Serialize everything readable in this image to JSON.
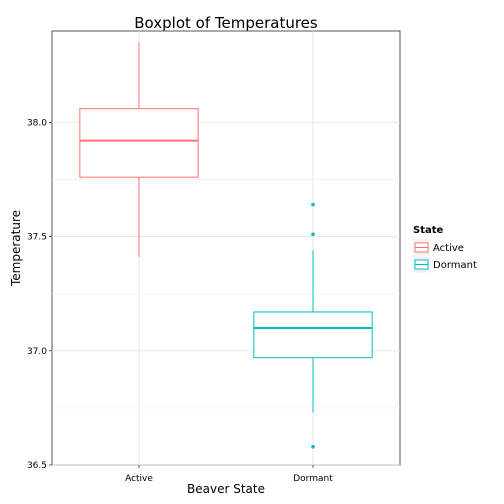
{
  "chart_data": {
    "type": "boxplot",
    "title": "Boxplot of Temperatures",
    "xlabel": "Beaver State",
    "ylabel": "Temperature",
    "categories": [
      "Active",
      "Dormant"
    ],
    "ylim": [
      36.5,
      38.4
    ],
    "yticks": [
      "36.5",
      "37.0",
      "37.5",
      "38.0"
    ],
    "grid": true,
    "legend": {
      "title": "State",
      "position": "right",
      "entries": [
        "Active",
        "Dormant"
      ]
    },
    "series": [
      {
        "name": "Active",
        "color": "#F8766D",
        "min": 37.41,
        "q1": 37.76,
        "median": 37.92,
        "q3": 38.06,
        "max": 38.35,
        "outliers": []
      },
      {
        "name": "Dormant",
        "color": "#00BFC4",
        "min": 36.73,
        "q1": 36.97,
        "median": 37.1,
        "q3": 37.17,
        "max": 37.44,
        "outliers": [
          37.64,
          37.51,
          36.58
        ]
      }
    ]
  }
}
